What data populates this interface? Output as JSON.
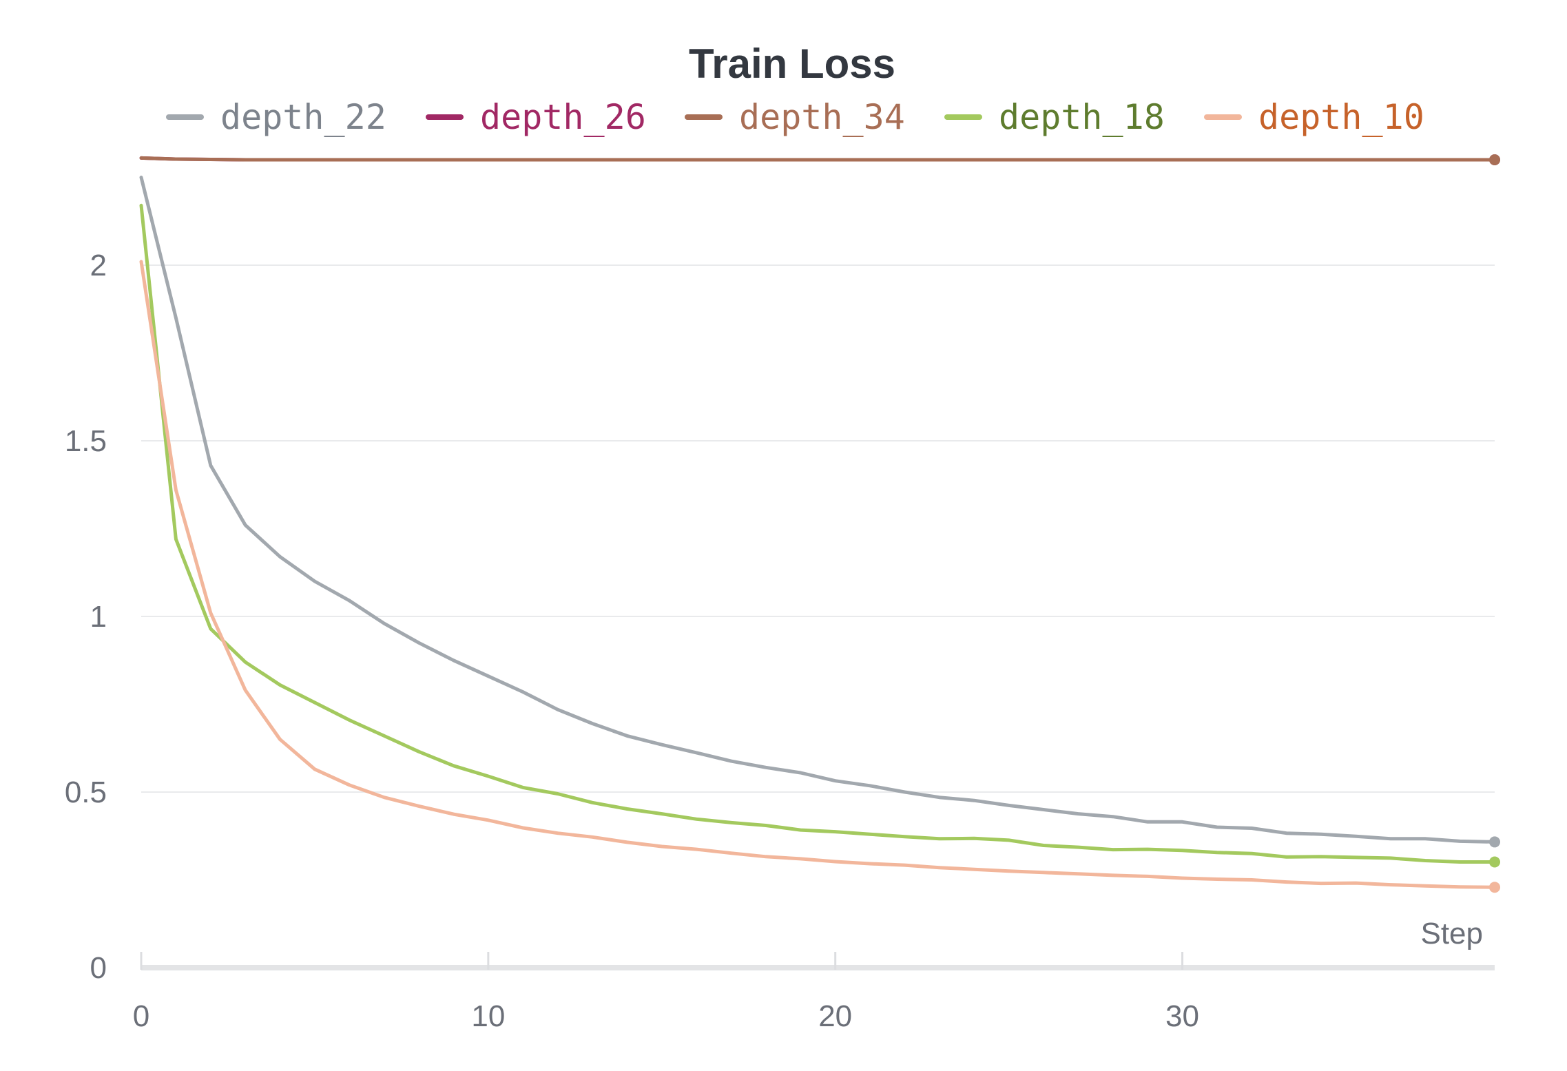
{
  "chart_data": {
    "type": "line",
    "title": "Train Loss",
    "xlabel": "Step",
    "ylabel": "",
    "xlim": [
      0,
      39
    ],
    "ylim": [
      0,
      2.3
    ],
    "xticks": [
      0,
      10,
      20,
      30
    ],
    "xtick_labels": [
      "0",
      "10",
      "20",
      "30"
    ],
    "yticks": [
      0,
      0.5,
      1,
      1.5,
      2
    ],
    "ytick_labels": [
      "0",
      "0.5",
      "1",
      "1.5",
      "2"
    ],
    "grid": "horizontal",
    "legend_position": "top",
    "x": [
      0,
      1,
      2,
      3,
      4,
      5,
      6,
      7,
      8,
      9,
      10,
      11,
      12,
      13,
      14,
      15,
      16,
      17,
      18,
      19,
      20,
      21,
      22,
      23,
      24,
      25,
      26,
      27,
      28,
      29,
      30,
      31,
      32,
      33,
      34,
      35,
      36,
      37,
      38,
      39
    ],
    "series": [
      {
        "name": "depth_22",
        "color": "#a2a8ae",
        "label_color": "#7d838c",
        "values": [
          2.25,
          1.85,
          1.43,
          1.26,
          1.17,
          1.1,
          1.045,
          0.98,
          0.925,
          0.875,
          0.83,
          0.785,
          0.735,
          0.695,
          0.66,
          0.635,
          0.612,
          0.588,
          0.57,
          0.555,
          0.532,
          0.518,
          0.5,
          0.485,
          0.476,
          0.462,
          0.45,
          0.438,
          0.43,
          0.415,
          0.415,
          0.4,
          0.397,
          0.383,
          0.38,
          0.374,
          0.367,
          0.367,
          0.36,
          0.358
        ]
      },
      {
        "name": "depth_26",
        "color": "#a12864",
        "label_color": "#a12864",
        "values": [
          2.305,
          2.302,
          2.301,
          2.3,
          2.3,
          2.3,
          2.3,
          2.3,
          2.3,
          2.3,
          2.3,
          2.3,
          2.3,
          2.3,
          2.3,
          2.3,
          2.3,
          2.3,
          2.3,
          2.3,
          2.3,
          2.3,
          2.3,
          2.3,
          2.3,
          2.3,
          2.3,
          2.3,
          2.3,
          2.3,
          2.3,
          2.3,
          2.3,
          2.3,
          2.3,
          2.3,
          2.3,
          2.3,
          2.3,
          2.3
        ]
      },
      {
        "name": "depth_34",
        "color": "#a86e55",
        "label_color": "#a86e55",
        "values": [
          2.305,
          2.302,
          2.301,
          2.3,
          2.3,
          2.3,
          2.3,
          2.3,
          2.3,
          2.3,
          2.3,
          2.3,
          2.3,
          2.3,
          2.3,
          2.3,
          2.3,
          2.3,
          2.3,
          2.3,
          2.3,
          2.3,
          2.3,
          2.3,
          2.3,
          2.3,
          2.3,
          2.3,
          2.3,
          2.3,
          2.3,
          2.3,
          2.3,
          2.3,
          2.3,
          2.3,
          2.3,
          2.3,
          2.3,
          2.3
        ]
      },
      {
        "name": "depth_18",
        "color": "#a3c95e",
        "label_color": "#5e7c2e",
        "values": [
          2.17,
          1.22,
          0.965,
          0.87,
          0.805,
          0.755,
          0.705,
          0.66,
          0.615,
          0.575,
          0.545,
          0.513,
          0.495,
          0.47,
          0.452,
          0.438,
          0.423,
          0.413,
          0.405,
          0.392,
          0.387,
          0.38,
          0.373,
          0.367,
          0.368,
          0.363,
          0.348,
          0.343,
          0.336,
          0.337,
          0.334,
          0.328,
          0.325,
          0.315,
          0.316,
          0.314,
          0.312,
          0.305,
          0.301,
          0.301
        ]
      },
      {
        "name": "depth_10",
        "color": "#f2b69b",
        "label_color": "#c6622a",
        "values": [
          2.01,
          1.36,
          1.01,
          0.79,
          0.65,
          0.565,
          0.52,
          0.485,
          0.46,
          0.437,
          0.42,
          0.398,
          0.383,
          0.372,
          0.357,
          0.345,
          0.337,
          0.326,
          0.316,
          0.31,
          0.302,
          0.296,
          0.292,
          0.285,
          0.28,
          0.275,
          0.271,
          0.267,
          0.263,
          0.26,
          0.255,
          0.252,
          0.25,
          0.244,
          0.24,
          0.241,
          0.236,
          0.233,
          0.23,
          0.229
        ]
      }
    ]
  }
}
